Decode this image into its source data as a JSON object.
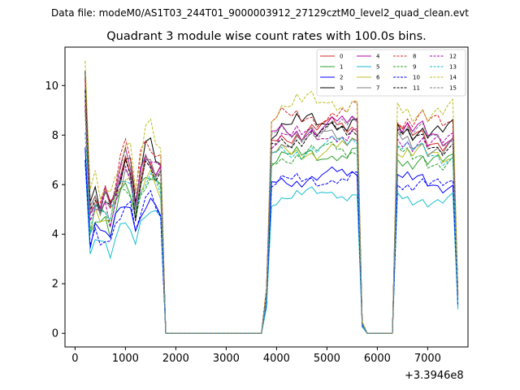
{
  "chart_data": {
    "type": "line",
    "suptitle": "Data file: modeM0/AS1T03_244T01_9000003912_27129cztM0_level2_quad_clean.evt",
    "title": "Quadrant 3 module wise count rates with 100.0s bins.",
    "xlabel": "",
    "ylabel": "",
    "offset_text": "+3.3946e8",
    "xlim": [
      -200,
      7800
    ],
    "ylim": [
      -0.55,
      11.55
    ],
    "xticks": [
      0,
      1000,
      2000,
      3000,
      4000,
      5000,
      6000,
      7000
    ],
    "yticks": [
      0,
      2,
      4,
      6,
      8,
      10
    ],
    "legend_location": "upper right",
    "x": [
      200,
      300,
      400,
      500,
      600,
      700,
      800,
      900,
      1000,
      1100,
      1200,
      1300,
      1400,
      1500,
      1600,
      1700,
      1800,
      1900,
      2000,
      2100,
      2200,
      2300,
      2400,
      2500,
      2600,
      2700,
      2800,
      2900,
      3000,
      3100,
      3200,
      3300,
      3400,
      3500,
      3600,
      3700,
      3800,
      3900,
      4000,
      4100,
      4200,
      4300,
      4400,
      4500,
      4600,
      4700,
      4800,
      4900,
      5000,
      5100,
      5200,
      5300,
      5400,
      5500,
      5600,
      5700,
      5800,
      5900,
      6000,
      6100,
      6200,
      6300,
      6400,
      6500,
      6600,
      6700,
      6800,
      6900,
      7000,
      7100,
      7200,
      7300,
      7400,
      7500,
      7600
    ],
    "series": [
      {
        "name": "0",
        "color": "#d62728",
        "dash": "solid",
        "base": [
          10.3,
          8.2,
          6.5
        ]
      },
      {
        "name": "1",
        "color": "#2ca02c",
        "dash": "solid",
        "base": [
          9.6,
          7.2,
          5.4
        ]
      },
      {
        "name": "2",
        "color": "#0000ff",
        "dash": "solid",
        "base": [
          7.5,
          6.3,
          4.1
        ]
      },
      {
        "name": "3",
        "color": "#000000",
        "dash": "solid",
        "base": [
          10.6,
          8.5,
          6.2
        ]
      },
      {
        "name": "4",
        "color": "#b000b0",
        "dash": "solid",
        "base": [
          9.4,
          8.3,
          6.0
        ]
      },
      {
        "name": "5",
        "color": "#17becf",
        "dash": "solid",
        "base": [
          6.9,
          5.6,
          3.7
        ]
      },
      {
        "name": "6",
        "color": "#bcbd22",
        "dash": "solid",
        "base": [
          9.3,
          7.4,
          5.0
        ]
      },
      {
        "name": "7",
        "color": "#7f7f7f",
        "dash": "solid",
        "base": [
          9.9,
          7.9,
          5.5
        ]
      },
      {
        "name": "8",
        "color": "#d62728",
        "dash": "dashed",
        "base": [
          10.2,
          8.8,
          6.1
        ]
      },
      {
        "name": "9",
        "color": "#2ca02c",
        "dash": "dashed",
        "base": [
          9.0,
          7.3,
          5.3
        ]
      },
      {
        "name": "10",
        "color": "#0000ff",
        "dash": "dashed",
        "base": [
          7.0,
          6.2,
          4.4
        ]
      },
      {
        "name": "11",
        "color": "#000000",
        "dash": "dashed",
        "base": [
          9.8,
          8.0,
          5.7
        ]
      },
      {
        "name": "12",
        "color": "#b000b0",
        "dash": "dashed",
        "base": [
          9.2,
          8.0,
          5.8
        ]
      },
      {
        "name": "13",
        "color": "#17becf",
        "dash": "dashed",
        "base": [
          8.1,
          7.5,
          4.8
        ]
      },
      {
        "name": "14",
        "color": "#bcbd22",
        "dash": "dashed",
        "base": [
          11.0,
          9.3,
          6.6
        ]
      },
      {
        "name": "15",
        "color": "#7f7f7f",
        "dash": "dashed",
        "base": [
          9.7,
          8.2,
          5.6
        ]
      }
    ]
  }
}
